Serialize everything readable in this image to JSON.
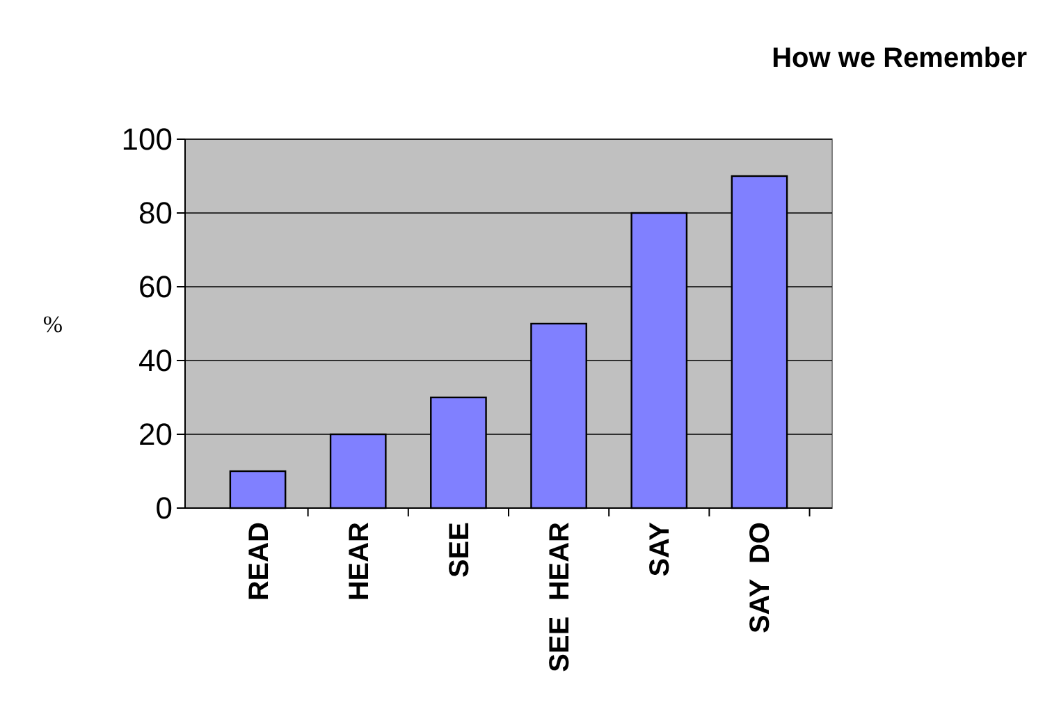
{
  "chart_data": {
    "type": "bar",
    "title": "How we Remember",
    "ylabel": "%",
    "categories": [
      "READ",
      "HEAR",
      "SEE",
      "SEE  HEAR",
      "SAY",
      "SAY  DO"
    ],
    "values": [
      10,
      20,
      30,
      50,
      80,
      90
    ],
    "color": "#8080ff",
    "ylim": [
      0,
      100
    ],
    "yticks": [
      0,
      20,
      40,
      60,
      80,
      100
    ],
    "grid": "y"
  }
}
